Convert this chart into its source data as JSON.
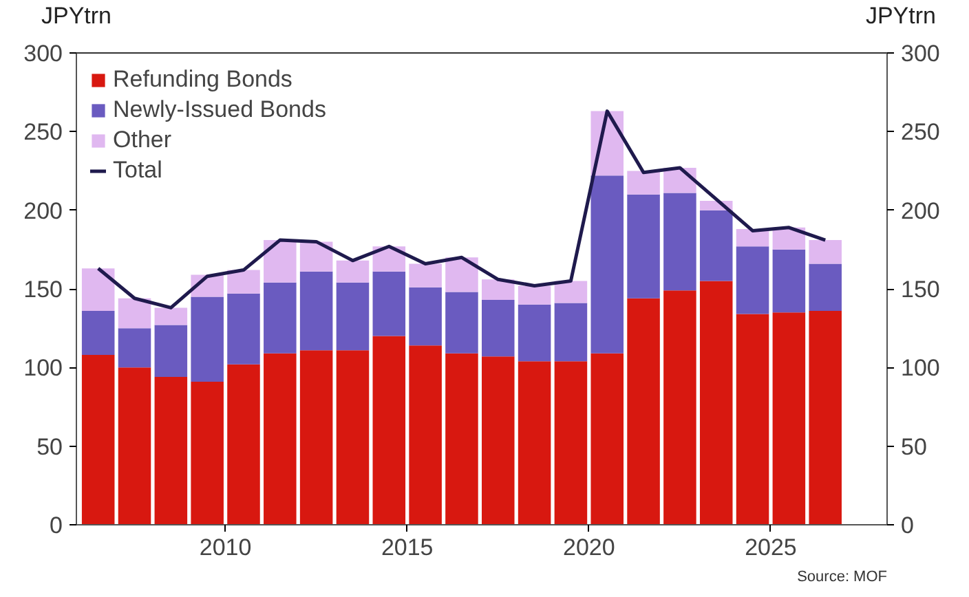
{
  "chart_data": {
    "type": "bar",
    "stacked": true,
    "ylabel": "JPYtrn",
    "y2label": "JPYtrn",
    "x": [
      2006.5,
      2007.5,
      2008.5,
      2009.5,
      2010.5,
      2011.5,
      2012.5,
      2013.5,
      2014.5,
      2015.5,
      2016.5,
      2017.5,
      2018.5,
      2019.5,
      2020.5,
      2021.5,
      2022.5,
      2023.5,
      2024.5,
      2025.5,
      2026.5
    ],
    "series": [
      {
        "name": "Refunding Bonds",
        "color": "#d81810",
        "values": [
          108,
          100,
          94,
          91,
          102,
          109,
          111,
          111,
          120,
          114,
          109,
          107,
          104,
          104,
          109,
          144,
          149,
          155,
          134,
          135,
          136
        ]
      },
      {
        "name": "Newly-Issued Bonds",
        "color": "#6a5bc0",
        "values": [
          28,
          25,
          33,
          54,
          45,
          45,
          50,
          43,
          41,
          37,
          39,
          36,
          36,
          37,
          113,
          66,
          62,
          45,
          43,
          40,
          30
        ]
      },
      {
        "name": "Other",
        "color": "#e0b8f0",
        "values": [
          27,
          19,
          11,
          14,
          15,
          27,
          19,
          14,
          16,
          15,
          22,
          13,
          12,
          14,
          41,
          15,
          16,
          6,
          11,
          14,
          15
        ]
      },
      {
        "name": "Total",
        "type": "line",
        "color": "#1f1a4d",
        "values": [
          163,
          144,
          138,
          158,
          162,
          181,
          180,
          168,
          177,
          166,
          170,
          156,
          152,
          155,
          263,
          224,
          227,
          207,
          187,
          189,
          181
        ]
      }
    ],
    "xlim": [
      2005.9,
      2028.2
    ],
    "xticks": [
      2010,
      2015,
      2020,
      2025
    ],
    "ylim": [
      0,
      300
    ],
    "yticks": [
      0,
      50,
      100,
      150,
      200,
      250,
      300
    ],
    "y2lim": [
      0,
      300
    ],
    "y2ticks": [
      0,
      50,
      100,
      150,
      200,
      250,
      300
    ],
    "grid": false,
    "legend": "top left",
    "annotations": [
      "Source: MOF"
    ]
  }
}
